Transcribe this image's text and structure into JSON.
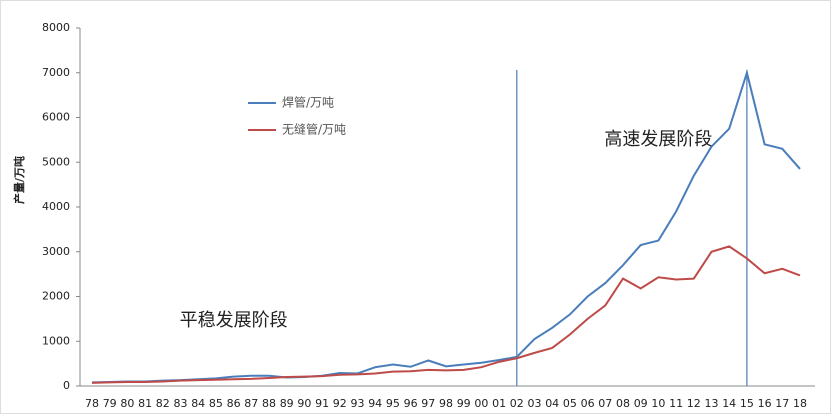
{
  "chart_data": {
    "type": "line",
    "y_label": "产量/万吨",
    "categories": [
      "78",
      "79",
      "80",
      "81",
      "82",
      "83",
      "84",
      "85",
      "86",
      "87",
      "88",
      "89",
      "90",
      "91",
      "92",
      "93",
      "94",
      "95",
      "96",
      "97",
      "98",
      "99",
      "00",
      "01",
      "02",
      "03",
      "04",
      "05",
      "06",
      "07",
      "08",
      "09",
      "10",
      "11",
      "12",
      "13",
      "14",
      "15",
      "16",
      "17",
      "18"
    ],
    "series": [
      {
        "name": "焊管/万吨",
        "color": "#4a7ebb",
        "values": [
          80,
          90,
          100,
          100,
          120,
          130,
          150,
          170,
          210,
          230,
          230,
          190,
          200,
          230,
          290,
          280,
          420,
          480,
          430,
          570,
          440,
          480,
          520,
          580,
          650,
          1050,
          1300,
          1600,
          2000,
          2300,
          2700,
          3150,
          3250,
          3900,
          4700,
          5350,
          5750,
          7000,
          5400,
          5300,
          4850
        ]
      },
      {
        "name": "无缝管/万吨",
        "color": "#be4b48",
        "values": [
          70,
          80,
          90,
          90,
          100,
          120,
          130,
          140,
          150,
          160,
          180,
          200,
          210,
          220,
          250,
          260,
          280,
          320,
          330,
          360,
          350,
          360,
          420,
          540,
          620,
          740,
          850,
          1150,
          1500,
          1800,
          2400,
          2180,
          2430,
          2380,
          2400,
          3000,
          3120,
          2850,
          2520,
          2620,
          2470
        ]
      }
    ],
    "ylim": [
      0,
      8000
    ],
    "yticks": [
      0,
      1000,
      2000,
      3000,
      4000,
      5000,
      6000,
      7000,
      8000
    ],
    "grid": false,
    "vlines": [
      "02",
      "15"
    ],
    "annotations": [
      {
        "text": "高速发展阶段",
        "x": "10",
        "y": 5500
      },
      {
        "text": "平稳发展阶段",
        "x": "86",
        "y": 1450
      }
    ]
  }
}
